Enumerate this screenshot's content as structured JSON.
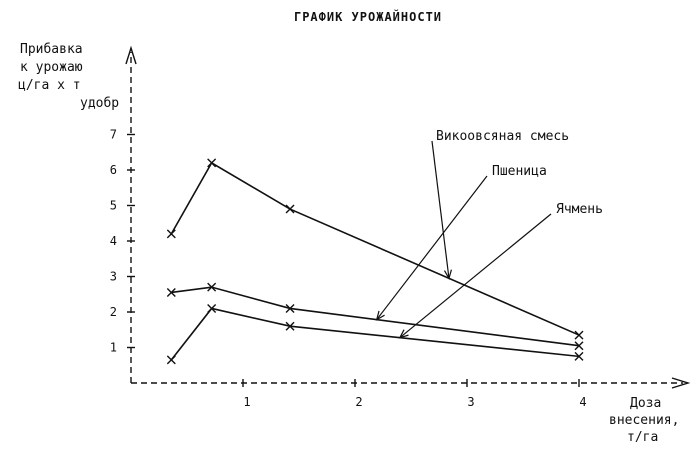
{
  "chart_data": {
    "type": "line",
    "title": "ГРАФИК УРОЖАЙНОСТИ",
    "ylabel_lines": [
      "Прибавка",
      "к урожаю",
      "ц/га х т",
      "удобр"
    ],
    "xlabel_lines": [
      "Доза",
      "внесения,",
      "т/га"
    ],
    "xlim": [
      0,
      4.1
    ],
    "ylim": [
      0,
      7.5
    ],
    "x_ticks": [
      1,
      2,
      3,
      4
    ],
    "y_ticks": [
      1,
      2,
      3,
      4,
      5,
      6,
      7
    ],
    "grid": false,
    "series": [
      {
        "name": "Викоовсяная смесь",
        "points": [
          [
            0.36,
            4.2
          ],
          [
            0.72,
            6.2
          ],
          [
            1.42,
            4.9
          ],
          [
            4.0,
            1.35
          ]
        ]
      },
      {
        "name": "Пшеница",
        "points": [
          [
            0.36,
            2.55
          ],
          [
            0.72,
            2.7
          ],
          [
            1.42,
            2.1
          ],
          [
            4.0,
            1.05
          ]
        ]
      },
      {
        "name": "Ячмень",
        "points": [
          [
            0.36,
            0.65
          ],
          [
            0.72,
            2.1
          ],
          [
            1.42,
            1.6
          ],
          [
            4.0,
            0.75
          ]
        ]
      }
    ]
  }
}
